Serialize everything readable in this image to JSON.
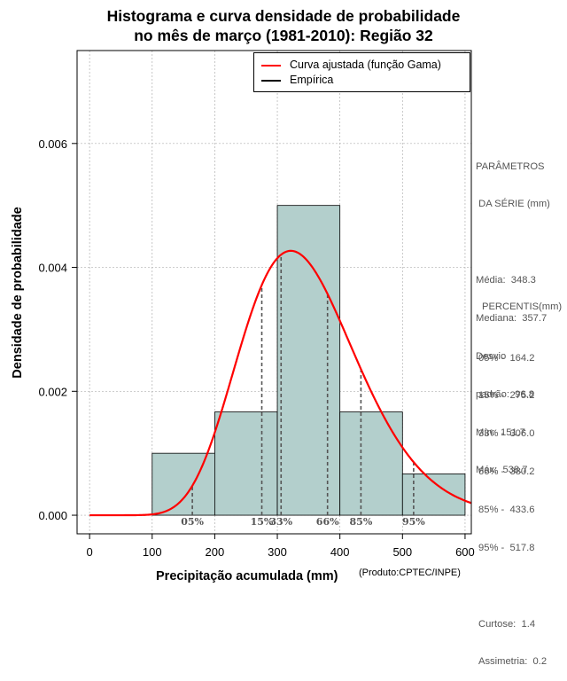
{
  "title_line1": "Histograma e curva densidade de probabilidade",
  "title_line2": "no mês de março (1981-2010): Região 32",
  "credit": "(Produto:CPTEC/INPE)",
  "colors": {
    "bars": "#b3cfcc",
    "curve": "#ff0000",
    "empirical": "#000000",
    "grid": "#b0b0b0",
    "percentile": "#555555"
  },
  "legend": {
    "fitted": "Curva ajustada (função Gama)",
    "empirical": "Empírica"
  },
  "params": {
    "heading_1": "PARÂMETROS",
    "heading_2": " DA SÉRIE (mm)",
    "media": "Média:  348.3",
    "mediana": "Mediana:  357.7",
    "desvio": "Desvio",
    "padrao": "padrão:  96.8",
    "min": "Mín:  151.7",
    "max": "Máx:  538.7"
  },
  "percentiles_panel": {
    "heading": "PERCENTIS(mm)",
    "p05": "05% -  164.2",
    "p15": "15% -  275.2",
    "p33": "33% -  306.0",
    "p66": "66% -  380.2",
    "p85": "85% -  433.6",
    "p95": "95% -  517.8",
    "curtose": "Curtose:  1.4",
    "assimetria": "Assimetria:  0.2"
  },
  "chart_data": {
    "type": "bar",
    "xlabel": "Precipitação acumulada (mm)",
    "ylabel": "Densidade de probabilidade",
    "xlim": [
      -20,
      610
    ],
    "ylim": [
      -0.0003,
      0.0075
    ],
    "xticks": [
      0,
      100,
      200,
      300,
      400,
      500,
      600
    ],
    "xtick_labels": [
      "0",
      "100",
      "200",
      "300",
      "400",
      "500",
      "600"
    ],
    "yticks": [
      0.0,
      0.002,
      0.004,
      0.006
    ],
    "ytick_labels": [
      "0.000",
      "0.002",
      "0.004",
      "0.006"
    ],
    "grid": true,
    "histogram": {
      "bin_edges": [
        100,
        200,
        300,
        400,
        500,
        600
      ],
      "density": [
        0.001,
        0.001667,
        0.005,
        0.001667,
        0.000667
      ]
    },
    "gamma_fit": {
      "shape": 13.0,
      "scale": 26.8
    },
    "percentiles": [
      {
        "label": "05%",
        "value": 164.2
      },
      {
        "label": "15%",
        "value": 275.2
      },
      {
        "label": "33%",
        "value": 306.0
      },
      {
        "label": "66%",
        "value": 380.2
      },
      {
        "label": "85%",
        "value": 433.6
      },
      {
        "label": "95%",
        "value": 517.8
      }
    ]
  }
}
